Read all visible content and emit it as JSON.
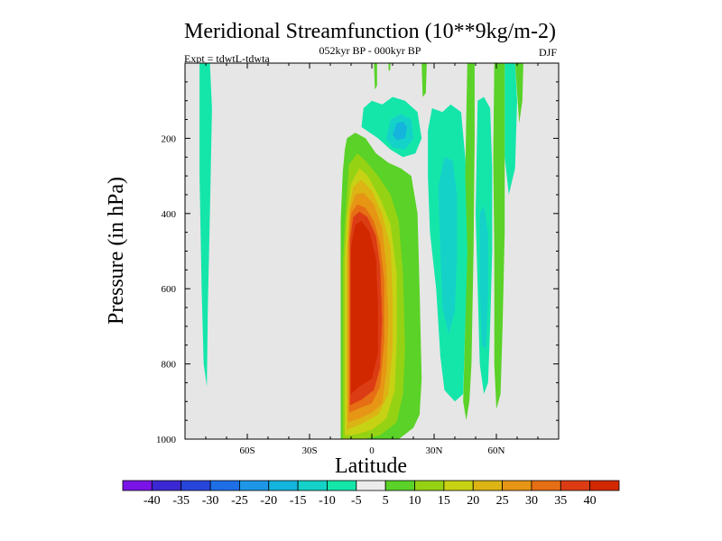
{
  "chart_data": {
    "type": "heatmap",
    "title": "Meridional Streamfunction (10**9kg/m-2)",
    "subtitle": "052kyr BP - 000kyr BP",
    "left_label": "Expt = tdwtL-tdwta",
    "right_label": "DJF",
    "xlabel": "Latitude",
    "ylabel": "Pressure (in hPa)",
    "xlim": [
      -90,
      90
    ],
    "ylim": [
      1000,
      0
    ],
    "x_ticks": [
      {
        "value": -60,
        "label": "60S"
      },
      {
        "value": -30,
        "label": "30S"
      },
      {
        "value": 0,
        "label": "0"
      },
      {
        "value": 30,
        "label": "30N"
      },
      {
        "value": 60,
        "label": "60N"
      }
    ],
    "y_ticks": [
      {
        "value": 200,
        "label": "200"
      },
      {
        "value": 400,
        "label": "400"
      },
      {
        "value": 600,
        "label": "600"
      },
      {
        "value": 800,
        "label": "800"
      },
      {
        "value": 1000,
        "label": "1000"
      }
    ],
    "background_color": "#e6e6e6",
    "colorbar": {
      "labels": [
        "-40",
        "-35",
        "-30",
        "-25",
        "-20",
        "-15",
        "-10",
        "-5",
        "5",
        "10",
        "15",
        "20",
        "25",
        "30",
        "35",
        "40"
      ],
      "colors": [
        "#7a14e6",
        "#3c28d2",
        "#2846dc",
        "#1e6ee6",
        "#1e96e6",
        "#14b4dc",
        "#14d2c8",
        "#14e6aa",
        "#ebebeb",
        "#5ad228",
        "#96d214",
        "#c8d214",
        "#dcb414",
        "#e69614",
        "#e66e14",
        "#dc3c14",
        "#d22800"
      ]
    },
    "regions": [
      {
        "level": 5,
        "color": "#14e6aa",
        "points": [
          [
            -83,
            0
          ],
          [
            -78,
            0
          ],
          [
            -77,
            120
          ],
          [
            -78,
            400
          ],
          [
            -79,
            650
          ],
          [
            -79.5,
            860
          ],
          [
            -81,
            800
          ],
          [
            -82,
            600
          ],
          [
            -83,
            300
          ]
        ]
      },
      {
        "level": 9,
        "color": "#5ad228",
        "points": [
          [
            -15,
            1000
          ],
          [
            -15,
            560
          ],
          [
            -15,
            420
          ],
          [
            -14,
            290
          ],
          [
            -13,
            230
          ],
          [
            -12,
            200
          ],
          [
            -8,
            185
          ],
          [
            -3,
            200
          ],
          [
            2,
            240
          ],
          [
            8,
            265
          ],
          [
            14,
            280
          ],
          [
            19,
            300
          ],
          [
            22,
            400
          ],
          [
            23,
            600
          ],
          [
            24,
            840
          ],
          [
            23,
            935
          ],
          [
            20,
            970
          ],
          [
            13,
            1000
          ]
        ]
      },
      {
        "level": 10,
        "color": "#96d214",
        "points": [
          [
            -14,
            1000
          ],
          [
            -14,
            540
          ],
          [
            -13,
            430
          ],
          [
            -12,
            350
          ],
          [
            -11,
            270
          ],
          [
            -7,
            240
          ],
          [
            -3,
            260
          ],
          [
            3,
            300
          ],
          [
            9,
            350
          ],
          [
            13,
            420
          ],
          [
            15,
            560
          ],
          [
            16,
            760
          ],
          [
            15,
            880
          ],
          [
            12,
            955
          ],
          [
            4,
            990
          ],
          [
            -4,
            1000
          ]
        ]
      },
      {
        "level": 11,
        "color": "#c8d214",
        "points": [
          [
            -13,
            990
          ],
          [
            -13,
            520
          ],
          [
            -12,
            410
          ],
          [
            -10,
            320
          ],
          [
            -6,
            280
          ],
          [
            -2,
            300
          ],
          [
            4,
            360
          ],
          [
            9,
            430
          ],
          [
            12,
            560
          ],
          [
            12,
            730
          ],
          [
            11,
            870
          ],
          [
            7,
            945
          ],
          [
            0,
            975
          ],
          [
            -8,
            988
          ]
        ]
      },
      {
        "level": 12,
        "color": "#dcb414",
        "points": [
          [
            -12,
            975
          ],
          [
            -12,
            500
          ],
          [
            -11,
            390
          ],
          [
            -9,
            330
          ],
          [
            -5,
            310
          ],
          [
            0,
            340
          ],
          [
            5,
            400
          ],
          [
            9,
            490
          ],
          [
            10,
            620
          ],
          [
            10,
            760
          ],
          [
            8,
            880
          ],
          [
            3,
            935
          ],
          [
            -5,
            960
          ]
        ]
      },
      {
        "level": 13,
        "color": "#e69614",
        "points": [
          [
            -11.5,
            955
          ],
          [
            -11.5,
            480
          ],
          [
            -10.5,
            390
          ],
          [
            -8,
            350
          ],
          [
            -4,
            345
          ],
          [
            1,
            375
          ],
          [
            5,
            440
          ],
          [
            7,
            540
          ],
          [
            8,
            680
          ],
          [
            7,
            820
          ],
          [
            5,
            905
          ],
          [
            0,
            930
          ],
          [
            -6,
            945
          ]
        ]
      },
      {
        "level": 14,
        "color": "#e66e14",
        "points": [
          [
            -11,
            930
          ],
          [
            -11,
            470
          ],
          [
            -10,
            400
          ],
          [
            -7,
            375
          ],
          [
            -3,
            385
          ],
          [
            1,
            420
          ],
          [
            4,
            480
          ],
          [
            6,
            580
          ],
          [
            6,
            740
          ],
          [
            4,
            860
          ],
          [
            0,
            905
          ],
          [
            -6,
            918
          ]
        ]
      },
      {
        "level": 15,
        "color": "#dc3c14",
        "points": [
          [
            -10.5,
            910
          ],
          [
            -10.5,
            470
          ],
          [
            -9,
            410
          ],
          [
            -6,
            395
          ],
          [
            -2,
            410
          ],
          [
            2,
            460
          ],
          [
            4,
            540
          ],
          [
            5,
            680
          ],
          [
            4,
            810
          ],
          [
            1,
            870
          ],
          [
            -5,
            895
          ]
        ]
      },
      {
        "level": 16,
        "color": "#d22800",
        "points": [
          [
            -10,
            880
          ],
          [
            -10,
            490
          ],
          [
            -8,
            430
          ],
          [
            -5,
            420
          ],
          [
            -1,
            450
          ],
          [
            2,
            520
          ],
          [
            3,
            640
          ],
          [
            3,
            770
          ],
          [
            0,
            840
          ],
          [
            -6,
            860
          ]
        ]
      },
      {
        "level": 5,
        "color": "#14e6aa",
        "points": [
          [
            -5,
            170
          ],
          [
            -4,
            120
          ],
          [
            0,
            100
          ],
          [
            5,
            110
          ],
          [
            10,
            90
          ],
          [
            16,
            100
          ],
          [
            22,
            130
          ],
          [
            24,
            200
          ],
          [
            21,
            240
          ],
          [
            15,
            250
          ],
          [
            9,
            230
          ],
          [
            3,
            200
          ]
        ]
      },
      {
        "level": 6,
        "color": "#14d2c8",
        "points": [
          [
            7,
            200
          ],
          [
            9,
            150
          ],
          [
            14,
            135
          ],
          [
            19,
            150
          ],
          [
            20,
            200
          ],
          [
            16,
            230
          ],
          [
            10,
            225
          ]
        ]
      },
      {
        "level": 7,
        "color": "#14b4dc",
        "points": [
          [
            10,
            190
          ],
          [
            12,
            160
          ],
          [
            15,
            155
          ],
          [
            17,
            170
          ],
          [
            16,
            200
          ],
          [
            12,
            205
          ]
        ]
      },
      {
        "level": 5,
        "color": "#14e6aa",
        "points": [
          [
            27,
            180
          ],
          [
            29,
            120
          ],
          [
            34,
            130
          ],
          [
            38,
            110
          ],
          [
            43,
            130
          ],
          [
            45,
            250
          ],
          [
            47,
            420
          ],
          [
            47,
            560
          ],
          [
            45,
            700
          ],
          [
            44,
            880
          ],
          [
            40,
            900
          ],
          [
            35,
            870
          ],
          [
            33,
            780
          ],
          [
            31,
            600
          ],
          [
            28,
            450
          ],
          [
            27,
            300
          ]
        ]
      },
      {
        "level": 6,
        "color": "#14d2c8",
        "points": [
          [
            32,
            330
          ],
          [
            35,
            250
          ],
          [
            39,
            260
          ],
          [
            41,
            350
          ],
          [
            41,
            520
          ],
          [
            40,
            660
          ],
          [
            37,
            720
          ],
          [
            34,
            650
          ],
          [
            33,
            500
          ]
        ]
      },
      {
        "level": 5,
        "color": "#14e6aa",
        "points": [
          [
            51,
            100
          ],
          [
            54,
            90
          ],
          [
            57,
            120
          ],
          [
            58,
            280
          ],
          [
            58,
            500
          ],
          [
            57,
            700
          ],
          [
            56,
            850
          ],
          [
            54,
            880
          ],
          [
            52,
            800
          ],
          [
            51,
            600
          ],
          [
            50,
            400
          ]
        ]
      },
      {
        "level": 6,
        "color": "#14d2c8",
        "points": [
          [
            52,
            400
          ],
          [
            54,
            380
          ],
          [
            56,
            450
          ],
          [
            56,
            620
          ],
          [
            55,
            760
          ],
          [
            53,
            750
          ],
          [
            52,
            600
          ]
        ]
      },
      {
        "level": 5,
        "color": "#14e6aa",
        "points": [
          [
            64,
            0
          ],
          [
            69,
            0
          ],
          [
            70,
            100
          ],
          [
            69,
            280
          ],
          [
            66,
            350
          ],
          [
            64,
            250
          ]
        ]
      },
      {
        "level": 9,
        "color": "#5ad228",
        "points": [
          [
            1,
            0
          ],
          [
            2.5,
            0
          ],
          [
            2.5,
            60
          ],
          [
            1.5,
            70
          ]
        ]
      },
      {
        "level": 9,
        "color": "#5ad228",
        "points": [
          [
            24,
            0
          ],
          [
            26.5,
            0
          ],
          [
            26,
            80
          ],
          [
            24.5,
            90
          ]
        ]
      },
      {
        "level": 9,
        "color": "#5ad228",
        "points": [
          [
            46,
            0
          ],
          [
            49.5,
            0
          ],
          [
            49.5,
            200
          ],
          [
            49,
            500
          ],
          [
            48,
            800
          ],
          [
            47,
            900
          ],
          [
            45.5,
            950
          ],
          [
            44,
            900
          ],
          [
            45,
            700
          ],
          [
            46,
            500
          ],
          [
            45,
            300
          ],
          [
            45.5,
            150
          ]
        ]
      },
      {
        "level": 9,
        "color": "#5ad228",
        "points": [
          [
            59,
            0
          ],
          [
            64,
            0
          ],
          [
            64,
            200
          ],
          [
            64,
            450
          ],
          [
            63,
            700
          ],
          [
            62,
            880
          ],
          [
            60,
            920
          ],
          [
            59,
            800
          ],
          [
            59,
            500
          ],
          [
            58.5,
            250
          ]
        ]
      },
      {
        "level": 9,
        "color": "#5ad228",
        "points": [
          [
            69,
            0
          ],
          [
            73,
            0
          ],
          [
            72.5,
            100
          ],
          [
            71,
            160
          ],
          [
            70,
            80
          ]
        ]
      },
      {
        "level": 9,
        "color": "#5ad228",
        "points": [
          [
            8,
            0
          ],
          [
            9,
            0
          ],
          [
            8.8,
            20
          ],
          [
            8.1,
            20
          ]
        ]
      }
    ]
  }
}
